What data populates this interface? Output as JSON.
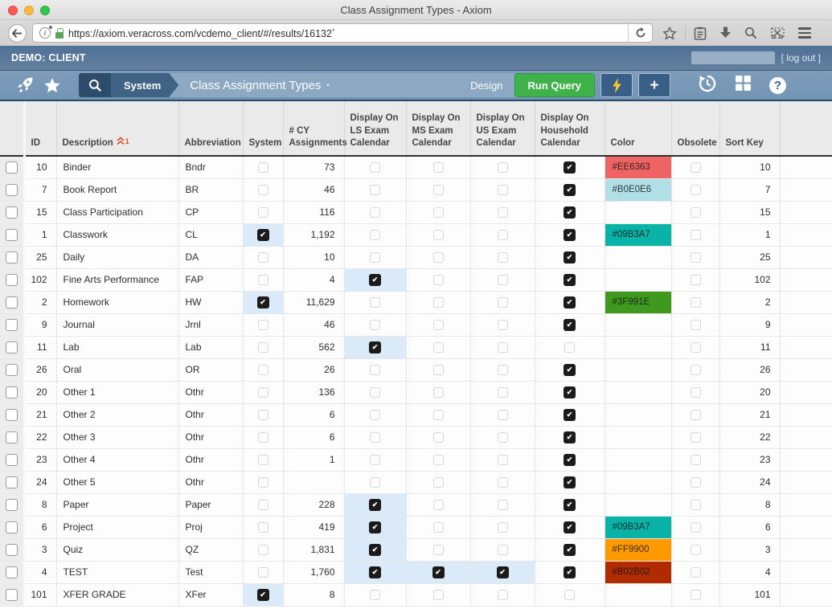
{
  "browser": {
    "window_title": "Class Assignment Types - Axiom",
    "url": "https://axiom.veracross.com/vcdemo_client/#/results/16132",
    "url_marker": "*"
  },
  "app_header": {
    "client_label": "DEMO: CLIENT",
    "logout_label": "[ log out ]"
  },
  "nav": {
    "breadcrumb_system": "System",
    "page_title": "Class Assignment Types",
    "title_dot": "•",
    "design_label": "Design",
    "run_query_label": "Run Query",
    "plus_label": "+",
    "help_label": "?"
  },
  "table": {
    "columns": [
      "",
      "ID",
      "Description",
      "Abbreviation",
      "System",
      "# CY\nAssignments",
      "Display On\nLS Exam\nCalendar",
      "Display On\nMS Exam\nCalendar",
      "Display On\nUS Exam\nCalendar",
      "Display On\nHousehold\nCalendar",
      "Color",
      "Obsolete",
      "Sort Key"
    ],
    "sort": {
      "column": "Description",
      "order": "1",
      "direction": "ascending"
    },
    "check_highlight_color": "#dbeaf8",
    "rows": [
      {
        "id": "10",
        "description": "Binder",
        "abbreviation": "Bndr",
        "system": false,
        "cy_assignments": "73",
        "ls": false,
        "ms": false,
        "us": false,
        "household": true,
        "color": "#EE6363",
        "obsolete": false,
        "sort_key": "10"
      },
      {
        "id": "7",
        "description": "Book Report",
        "abbreviation": "BR",
        "system": false,
        "cy_assignments": "46",
        "ls": false,
        "ms": false,
        "us": false,
        "household": true,
        "color": "#B0E0E6",
        "obsolete": false,
        "sort_key": "7"
      },
      {
        "id": "15",
        "description": "Class Participation",
        "abbreviation": "CP",
        "system": false,
        "cy_assignments": "116",
        "ls": false,
        "ms": false,
        "us": false,
        "household": true,
        "color": "",
        "obsolete": false,
        "sort_key": "15"
      },
      {
        "id": "1",
        "description": "Classwork",
        "abbreviation": "CL",
        "system": true,
        "cy_assignments": "1,192",
        "ls": false,
        "ms": false,
        "us": false,
        "household": true,
        "color": "#09B3A7",
        "obsolete": false,
        "sort_key": "1"
      },
      {
        "id": "25",
        "description": "Daily",
        "abbreviation": "DA",
        "system": false,
        "cy_assignments": "10",
        "ls": false,
        "ms": false,
        "us": false,
        "household": true,
        "color": "",
        "obsolete": false,
        "sort_key": "25"
      },
      {
        "id": "102",
        "description": "Fine Arts Performance",
        "abbreviation": "FAP",
        "system": false,
        "cy_assignments": "4",
        "ls": true,
        "ms": false,
        "us": false,
        "household": true,
        "color": "",
        "obsolete": false,
        "sort_key": "102"
      },
      {
        "id": "2",
        "description": "Homework",
        "abbreviation": "HW",
        "system": true,
        "cy_assignments": "11,629",
        "ls": false,
        "ms": false,
        "us": false,
        "household": true,
        "color": "#3F991E",
        "obsolete": false,
        "sort_key": "2"
      },
      {
        "id": "9",
        "description": "Journal",
        "abbreviation": "Jrnl",
        "system": false,
        "cy_assignments": "46",
        "ls": false,
        "ms": false,
        "us": false,
        "household": true,
        "color": "",
        "obsolete": false,
        "sort_key": "9"
      },
      {
        "id": "11",
        "description": "Lab",
        "abbreviation": "Lab",
        "system": false,
        "cy_assignments": "562",
        "ls": true,
        "ms": false,
        "us": false,
        "household": false,
        "color": "",
        "obsolete": false,
        "sort_key": "11"
      },
      {
        "id": "26",
        "description": "Oral",
        "abbreviation": "OR",
        "system": false,
        "cy_assignments": "26",
        "ls": false,
        "ms": false,
        "us": false,
        "household": true,
        "color": "",
        "obsolete": false,
        "sort_key": "26"
      },
      {
        "id": "20",
        "description": "Other 1",
        "abbreviation": "Othr",
        "system": false,
        "cy_assignments": "136",
        "ls": false,
        "ms": false,
        "us": false,
        "household": true,
        "color": "",
        "obsolete": false,
        "sort_key": "20"
      },
      {
        "id": "21",
        "description": "Other 2",
        "abbreviation": "Othr",
        "system": false,
        "cy_assignments": "6",
        "ls": false,
        "ms": false,
        "us": false,
        "household": true,
        "color": "",
        "obsolete": false,
        "sort_key": "21"
      },
      {
        "id": "22",
        "description": "Other 3",
        "abbreviation": "Othr",
        "system": false,
        "cy_assignments": "6",
        "ls": false,
        "ms": false,
        "us": false,
        "household": true,
        "color": "",
        "obsolete": false,
        "sort_key": "22"
      },
      {
        "id": "23",
        "description": "Other 4",
        "abbreviation": "Othr",
        "system": false,
        "cy_assignments": "1",
        "ls": false,
        "ms": false,
        "us": false,
        "household": true,
        "color": "",
        "obsolete": false,
        "sort_key": "23"
      },
      {
        "id": "24",
        "description": "Other 5",
        "abbreviation": "Othr",
        "system": false,
        "cy_assignments": "",
        "ls": false,
        "ms": false,
        "us": false,
        "household": true,
        "color": "",
        "obsolete": false,
        "sort_key": "24"
      },
      {
        "id": "8",
        "description": "Paper",
        "abbreviation": "Paper",
        "system": false,
        "cy_assignments": "228",
        "ls": true,
        "ms": false,
        "us": false,
        "household": true,
        "color": "",
        "obsolete": false,
        "sort_key": "8"
      },
      {
        "id": "6",
        "description": "Project",
        "abbreviation": "Proj",
        "system": false,
        "cy_assignments": "419",
        "ls": true,
        "ms": false,
        "us": false,
        "household": true,
        "color": "#09B3A7",
        "obsolete": false,
        "sort_key": "6"
      },
      {
        "id": "3",
        "description": "Quiz",
        "abbreviation": "QZ",
        "system": false,
        "cy_assignments": "1,831",
        "ls": true,
        "ms": false,
        "us": false,
        "household": true,
        "color": "#FF9900",
        "obsolete": false,
        "sort_key": "3"
      },
      {
        "id": "4",
        "description": "TEST",
        "abbreviation": "Test",
        "system": false,
        "cy_assignments": "1,760",
        "ls": true,
        "ms": true,
        "us": true,
        "household": true,
        "color": "#B02B02",
        "obsolete": false,
        "sort_key": "4"
      },
      {
        "id": "101",
        "description": "XFER GRADE",
        "abbreviation": "XFer",
        "system": true,
        "cy_assignments": "8",
        "ls": false,
        "ms": false,
        "us": false,
        "household": false,
        "color": "",
        "obsolete": false,
        "sort_key": "101"
      }
    ]
  }
}
